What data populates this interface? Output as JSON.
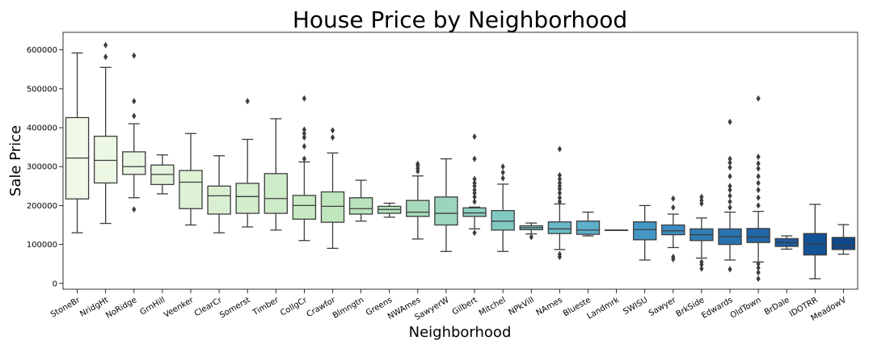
{
  "chart_data": {
    "type": "box",
    "title": "House Price by Neighborhood",
    "xlabel": "Neighborhood",
    "ylabel": "Sale Price",
    "ylim": [
      -15000,
      645000
    ],
    "yticks": [
      "0",
      "100000",
      "200000",
      "300000",
      "400000",
      "500000",
      "600000"
    ],
    "grid": false,
    "legend": "none",
    "categories": [
      "StoneBr",
      "NridgHt",
      "NoRidge",
      "GrnHill",
      "Veenker",
      "ClearCr",
      "Somerst",
      "Timber",
      "CollgCr",
      "Crawfor",
      "Blmngtn",
      "Greens",
      "NWAmes",
      "SawyerW",
      "Gilbert",
      "Mitchel",
      "NPkVill",
      "NAmes",
      "Blueste",
      "Landmrk",
      "SWISU",
      "Sawyer",
      "BrkSide",
      "Edwards",
      "OldTown",
      "BrDale",
      "IDOTRR",
      "MeadowV"
    ],
    "boxes": [
      {
        "whisker_low": 130000,
        "q1": 217000,
        "median": 322000,
        "q3": 426000,
        "whisker_high": 592000,
        "outliers": [],
        "color": "#f0f9e8"
      },
      {
        "whisker_low": 154000,
        "q1": 258000,
        "median": 316000,
        "q3": 378000,
        "whisker_high": 555000,
        "outliers": [
          582000,
          612000
        ],
        "color": "#ecf7e4"
      },
      {
        "whisker_low": 220000,
        "q1": 280000,
        "median": 300000,
        "q3": 338000,
        "whisker_high": 410000,
        "outliers": [
          190000,
          430000,
          468000,
          585000
        ],
        "color": "#e8f5e0"
      },
      {
        "whisker_low": 230000,
        "q1": 254000,
        "median": 280000,
        "q3": 304000,
        "whisker_high": 330000,
        "outliers": [],
        "color": "#e3f3db"
      },
      {
        "whisker_low": 150000,
        "q1": 192000,
        "median": 260000,
        "q3": 290000,
        "whisker_high": 385000,
        "outliers": [],
        "color": "#def2d6"
      },
      {
        "whisker_low": 130000,
        "q1": 178000,
        "median": 225000,
        "q3": 250000,
        "whisker_high": 328000,
        "outliers": [],
        "color": "#d9efd2"
      },
      {
        "whisker_low": 145000,
        "q1": 180000,
        "median": 223000,
        "q3": 257000,
        "whisker_high": 370000,
        "outliers": [
          468000
        ],
        "color": "#d3edcd"
      },
      {
        "whisker_low": 137000,
        "q1": 180000,
        "median": 218000,
        "q3": 282000,
        "whisker_high": 423000,
        "outliers": [],
        "color": "#ceebc9"
      },
      {
        "whisker_low": 110000,
        "q1": 165000,
        "median": 200000,
        "q3": 226000,
        "whisker_high": 312000,
        "outliers": [
          320000,
          352000,
          375000,
          385000,
          395000,
          475000
        ],
        "color": "#c8e9c3"
      },
      {
        "whisker_low": 90000,
        "q1": 157000,
        "median": 198000,
        "q3": 235000,
        "whisker_high": 335000,
        "outliers": [
          375000,
          393000
        ],
        "color": "#c0e6be"
      },
      {
        "whisker_low": 160000,
        "q1": 178000,
        "median": 192000,
        "q3": 220000,
        "whisker_high": 265000,
        "outliers": [],
        "color": "#b8e3bb"
      },
      {
        "whisker_low": 170000,
        "q1": 180000,
        "median": 190000,
        "q3": 198000,
        "whisker_high": 206000,
        "outliers": [],
        "color": "#afdfba"
      },
      {
        "whisker_low": 114000,
        "q1": 172000,
        "median": 183000,
        "q3": 213000,
        "whisker_high": 276000,
        "outliers": [
          288000,
          295000,
          302000,
          307000
        ],
        "color": "#a5dbba"
      },
      {
        "whisker_low": 82000,
        "q1": 150000,
        "median": 180000,
        "q3": 222000,
        "whisker_high": 320000,
        "outliers": [],
        "color": "#9bd6bc"
      },
      {
        "whisker_low": 140000,
        "q1": 172000,
        "median": 181000,
        "q3": 194000,
        "whisker_high": 196000,
        "outliers": [
          130000,
          210000,
          222000,
          232000,
          240000,
          250000,
          258000,
          268000,
          320000,
          377000
        ],
        "color": "#8fd0bf"
      },
      {
        "whisker_low": 82000,
        "q1": 137000,
        "median": 160000,
        "q3": 187000,
        "whisker_high": 255000,
        "outliers": [
          270000,
          285000,
          300000
        ],
        "color": "#83c9c3"
      },
      {
        "whisker_low": 127000,
        "q1": 138000,
        "median": 143000,
        "q3": 148000,
        "whisker_high": 155000,
        "outliers": [
          119000
        ],
        "color": "#76c2c6"
      },
      {
        "whisker_low": 87000,
        "q1": 128000,
        "median": 140000,
        "q3": 158000,
        "whisker_high": 204000,
        "outliers": [
          68000,
          75000,
          210000,
          220000,
          232000,
          242000,
          250000,
          258000,
          268000,
          278000,
          345000
        ],
        "color": "#69b9c8"
      },
      {
        "whisker_low": 122000,
        "q1": 126000,
        "median": 137000,
        "q3": 160000,
        "whisker_high": 183000,
        "outliers": [],
        "color": "#5caecb"
      },
      {
        "whisker_low": 137000,
        "q1": 137000,
        "median": 137000,
        "q3": 137000,
        "whisker_high": 137000,
        "outliers": [],
        "color": "#50a3c9"
      },
      {
        "whisker_low": 60000,
        "q1": 112000,
        "median": 138000,
        "q3": 158000,
        "whisker_high": 200000,
        "outliers": [],
        "color": "#4497c5"
      },
      {
        "whisker_low": 92000,
        "q1": 125000,
        "median": 135000,
        "q3": 150000,
        "whisker_high": 178000,
        "outliers": [
          62000,
          68000,
          195000,
          218000
        ],
        "color": "#3a8bc0"
      },
      {
        "whisker_low": 65000,
        "q1": 110000,
        "median": 125000,
        "q3": 140000,
        "whisker_high": 168000,
        "outliers": [
          38000,
          48000,
          55000,
          205000,
          213000,
          222000
        ],
        "color": "#317fb9"
      },
      {
        "whisker_low": 60000,
        "q1": 100000,
        "median": 120000,
        "q3": 140000,
        "whisker_high": 183000,
        "outliers": [
          36000,
          195000,
          210000,
          225000,
          240000,
          250000,
          275000,
          298000,
          310000,
          320000,
          415000
        ],
        "color": "#2973b1"
      },
      {
        "whisker_low": 55000,
        "q1": 105000,
        "median": 119000,
        "q3": 141000,
        "whisker_high": 185000,
        "outliers": [
          12000,
          28000,
          40000,
          50000,
          200000,
          220000,
          240000,
          258000,
          275000,
          295000,
          308000,
          325000,
          475000
        ],
        "color": "#2167a8"
      },
      {
        "whisker_low": 88000,
        "q1": 95000,
        "median": 105000,
        "q3": 115000,
        "whisker_high": 122000,
        "outliers": [],
        "color": "#1b5c9f"
      },
      {
        "whisker_low": 12000,
        "q1": 73000,
        "median": 102000,
        "q3": 128000,
        "whisker_high": 203000,
        "outliers": [],
        "color": "#155195"
      },
      {
        "whisker_low": 75000,
        "q1": 87000,
        "median": 97000,
        "q3": 118000,
        "whisker_high": 151000,
        "outliers": [],
        "color": "#104889"
      }
    ]
  }
}
